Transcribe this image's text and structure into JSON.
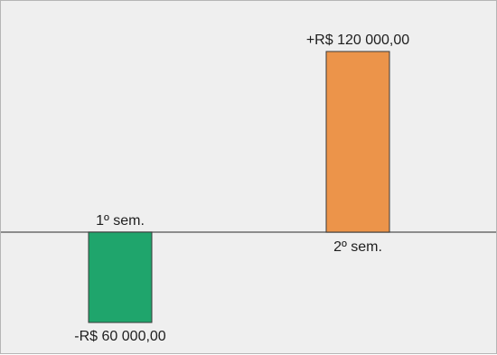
{
  "chart_data": {
    "type": "bar",
    "categories": [
      "1º sem.",
      "2º sem."
    ],
    "values": [
      -60000,
      120000
    ],
    "value_labels": [
      "-R$ 60 000,00",
      "+R$ 120 000,00"
    ],
    "colors": [
      "#1fa56c",
      "#ec944a"
    ],
    "title": "",
    "xlabel": "",
    "ylabel": "",
    "ylim": [
      -60000,
      120000
    ],
    "grid": false,
    "legend": "none"
  }
}
